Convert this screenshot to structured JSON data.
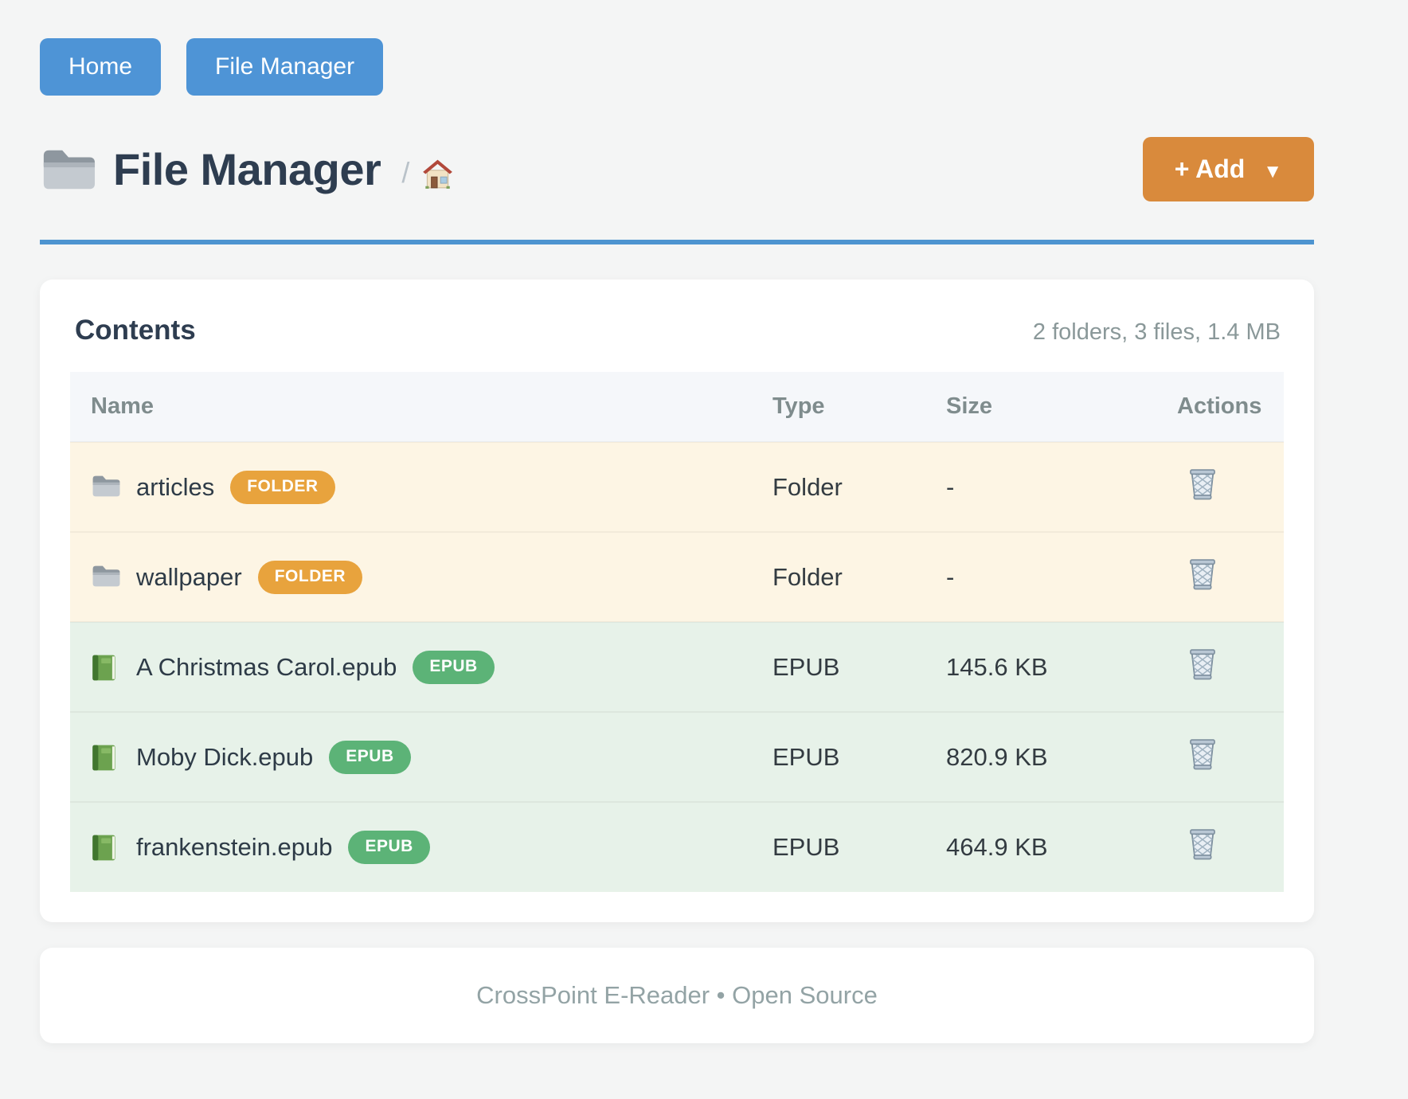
{
  "nav": {
    "buttons": [
      {
        "label": "Home"
      },
      {
        "label": "File Manager"
      }
    ]
  },
  "header": {
    "title": "File Manager",
    "breadcrumb_separator": "/",
    "add_button_label": "+ Add",
    "add_button_caret": "▼"
  },
  "contents": {
    "heading": "Contents",
    "summary": "2 folders, 3 files, 1.4 MB",
    "columns": [
      "Name",
      "Type",
      "Size",
      "Actions"
    ],
    "rows": [
      {
        "kind": "folder",
        "name": "articles",
        "badge": "FOLDER",
        "type": "Folder",
        "size": "-"
      },
      {
        "kind": "folder",
        "name": "wallpaper",
        "badge": "FOLDER",
        "type": "Folder",
        "size": "-"
      },
      {
        "kind": "epub",
        "name": "A Christmas Carol.epub",
        "badge": "EPUB",
        "type": "EPUB",
        "size": "145.6 KB"
      },
      {
        "kind": "epub",
        "name": "Moby Dick.epub",
        "badge": "EPUB",
        "type": "EPUB",
        "size": "820.9 KB"
      },
      {
        "kind": "epub",
        "name": "frankenstein.epub",
        "badge": "EPUB",
        "type": "EPUB",
        "size": "464.9 KB"
      }
    ]
  },
  "footer": {
    "text": "CrossPoint E-Reader • Open Source"
  },
  "colors": {
    "page_bg": "#f4f5f5",
    "nav_button_bg": "#4e94d6",
    "accent_rule": "#4d94d0",
    "add_button_bg": "#d98a3c",
    "heading_color": "#2e3d50",
    "muted_color": "#8a9899",
    "folder_badge_bg": "#e8a33d",
    "epub_badge_bg": "#5cb377",
    "folder_row_bg": "#fdf5e4",
    "epub_row_bg": "#e7f2e9"
  }
}
